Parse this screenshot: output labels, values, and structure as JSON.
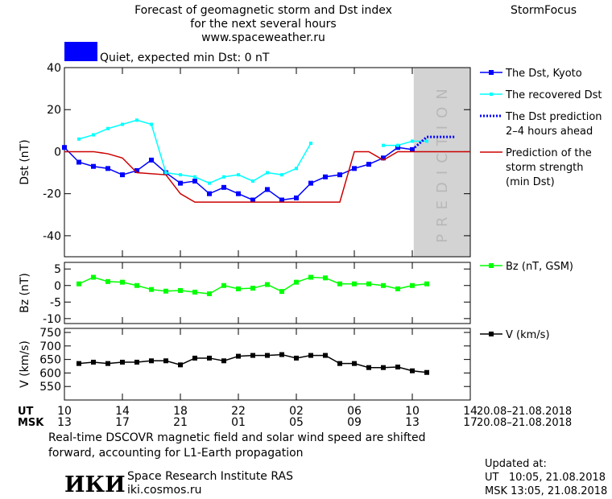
{
  "header": {
    "title": [
      "Forecast of geomagnetic storm and Dst index",
      "for the next several hours",
      "www.spaceweather.ru"
    ],
    "brand": "StormFocus"
  },
  "status": {
    "text": "Quiet, expected min Dst: 0 nT",
    "color": "#0000ff"
  },
  "time_axis": {
    "xlim": [
      0,
      28
    ],
    "rows": [
      {
        "label": "UT",
        "dates": "20.08–21.08.2018",
        "ticks": [
          {
            "value": 0,
            "label": "10"
          },
          {
            "value": 4,
            "label": "14"
          },
          {
            "value": 8,
            "label": "18"
          },
          {
            "value": 12,
            "label": "22"
          },
          {
            "value": 16,
            "label": "02"
          },
          {
            "value": 20,
            "label": "06"
          },
          {
            "value": 24,
            "label": "10"
          },
          {
            "value": 28,
            "label": "14"
          }
        ]
      },
      {
        "label": "MSK",
        "dates": "20.08–21.08.2018",
        "ticks": [
          {
            "value": 0,
            "label": "13"
          },
          {
            "value": 4,
            "label": "17"
          },
          {
            "value": 8,
            "label": "21"
          },
          {
            "value": 12,
            "label": "01"
          },
          {
            "value": 16,
            "label": "05"
          },
          {
            "value": 20,
            "label": "09"
          },
          {
            "value": 24,
            "label": "13"
          },
          {
            "value": 28,
            "label": "17"
          }
        ]
      }
    ]
  },
  "chart_data": [
    {
      "type": "line",
      "ylabel": "Dst (nT)",
      "ylim": [
        -50,
        40
      ],
      "yticks": [
        -40,
        -20,
        0,
        20,
        40
      ],
      "shade": {
        "from": 24.1,
        "to": 28,
        "label": "PREDICTION",
        "color": "#d3d3d3"
      },
      "series": [
        {
          "name": [
            "The Dst, Kyoto"
          ],
          "color": "#0000ff",
          "marker": "square",
          "x": [
            0,
            1,
            2,
            3,
            4,
            5,
            6,
            7,
            8,
            9,
            10,
            11,
            12,
            13,
            14,
            15,
            16,
            17,
            18,
            19,
            20,
            21,
            22,
            23,
            24
          ],
          "values": [
            2,
            -5,
            -7,
            -8,
            -11,
            -9,
            -4,
            -10,
            -15,
            -14,
            -20,
            -17,
            -20,
            -23,
            -18,
            -23,
            -22,
            -15,
            -12,
            -11,
            -8,
            -6,
            -3,
            2,
            1
          ]
        },
        {
          "name": [
            "The recovered Dst"
          ],
          "color": "#00ffff",
          "marker": "small-square",
          "x": [
            1,
            2,
            3,
            4,
            5,
            6,
            7,
            8,
            9,
            10,
            11,
            12,
            13,
            14,
            15,
            16,
            17,
            18,
            19,
            20,
            21,
            22,
            23,
            24,
            25
          ],
          "values": [
            6,
            8,
            11,
            13,
            15,
            13,
            -10,
            -11,
            -12,
            -15,
            -12,
            -11,
            -14,
            -10,
            -11,
            -8,
            4,
            null,
            null,
            null,
            null,
            3,
            3,
            5,
            5
          ]
        },
        {
          "name": [
            "The Dst prediction",
            "2–4 hours ahead"
          ],
          "color": "#0000ff",
          "dash": "dotted",
          "x": [
            24,
            25,
            26,
            27
          ],
          "values": [
            1,
            7,
            7,
            7
          ]
        },
        {
          "name": [
            "Prediction of the",
            "storm strength",
            "(min Dst)"
          ],
          "color": "#cc0000",
          "x": [
            0,
            2,
            3,
            4,
            5,
            7,
            8,
            9,
            19,
            20,
            21,
            22,
            23,
            28
          ],
          "values": [
            0,
            0,
            -1,
            -3,
            -10,
            -11,
            -20,
            -24,
            -24,
            0,
            0,
            -4,
            0,
            0
          ]
        }
      ]
    },
    {
      "type": "line",
      "ylabel": "Bz (nT)",
      "ylim": [
        -11.5,
        7
      ],
      "yticks": [
        -10,
        -5,
        0,
        5
      ],
      "series": [
        {
          "name": [
            "Bz (nT, GSM)"
          ],
          "color": "#00ff00",
          "marker": "square",
          "x": [
            1,
            2,
            3,
            4,
            5,
            6,
            7,
            8,
            9,
            10,
            11,
            12,
            13,
            14,
            15,
            16,
            17,
            18,
            19,
            20,
            21,
            22,
            23,
            24,
            25
          ],
          "values": [
            0.5,
            2.5,
            1.2,
            1,
            0,
            -1.2,
            -1.7,
            -1.5,
            -2,
            -2.5,
            0,
            -1,
            -0.8,
            0.3,
            -1.8,
            1,
            2.5,
            2.3,
            0.5,
            0.5,
            0.5,
            0,
            -1,
            0,
            0.5
          ]
        }
      ]
    },
    {
      "type": "line",
      "ylabel": "V (km/s)",
      "ylim": [
        500,
        765
      ],
      "yticks": [
        550,
        600,
        650,
        700,
        750
      ],
      "series": [
        {
          "name": [
            "V (km/s)"
          ],
          "color": "#000000",
          "marker": "square",
          "x": [
            1,
            2,
            3,
            4,
            5,
            6,
            7,
            8,
            9,
            10,
            11,
            12,
            13,
            14,
            15,
            16,
            17,
            18,
            19,
            20,
            21,
            22,
            23,
            24,
            25
          ],
          "values": [
            635,
            640,
            635,
            640,
            640,
            645,
            645,
            630,
            655,
            655,
            645,
            662,
            665,
            665,
            668,
            655,
            665,
            665,
            635,
            635,
            620,
            620,
            622,
            608,
            602
          ]
        }
      ]
    }
  ],
  "footer": {
    "note": [
      "Real-time DSCOVR magnetic field and solar wind speed are shifted",
      "forward, accounting for L1-Earth propagation"
    ],
    "logo": "ИКИ",
    "institute": "Space Research Institute RAS",
    "url": "iki.cosmos.ru",
    "updated": {
      "title": "Updated at:",
      "lines": [
        "UT   10:05, 21.08.2018",
        "MSK 13:05, 21.08.2018"
      ]
    }
  }
}
